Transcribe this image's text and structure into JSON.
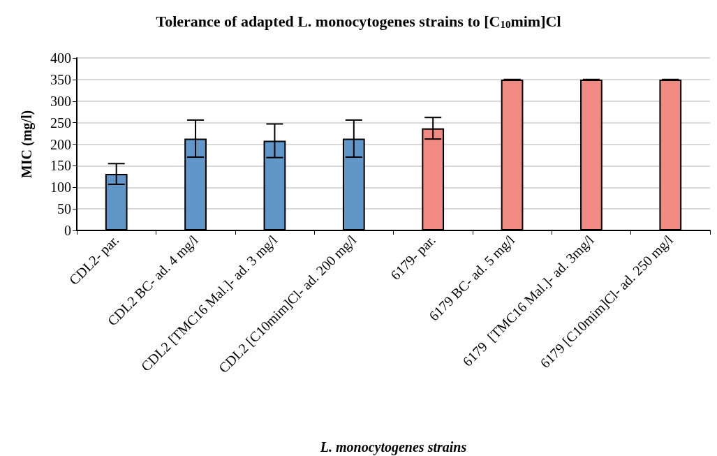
{
  "chart_data": {
    "type": "bar",
    "title": "Tolerance of adapted L. monocytogenes strains to [C$_{10}$mim]Cl",
    "xlabel": "L. monocytogenes strains",
    "ylabel": "MIC (mg/l)",
    "categories": [
      "CDL2- par.",
      "CDL2 BC- ad. 4 mg/l",
      "CDL2 [TMC16 Mal.]- ad. 3 mg/l",
      "CDL2 [C10mim]Cl- ad. 200 mg/l",
      "6179- par.",
      "6179 BC- ad. 5 mg/l",
      "6179  [TMC16 Mal.]- ad. 3mg/l",
      "6179 [C10mim]Cl- ad. 250 mg/l"
    ],
    "values": [
      131,
      213,
      208,
      213,
      237,
      350,
      350,
      350
    ],
    "errors": [
      24,
      43,
      39,
      43,
      25,
      0,
      0,
      0
    ],
    "colors": [
      "#6096c8",
      "#6096c8",
      "#6096c8",
      "#6096c8",
      "#f08a82",
      "#f08a82",
      "#f08a82",
      "#f08a82"
    ],
    "ylim": [
      0,
      400
    ],
    "yticks": [
      0,
      50,
      100,
      150,
      200,
      250,
      300,
      350,
      400
    ],
    "grid": "y"
  }
}
